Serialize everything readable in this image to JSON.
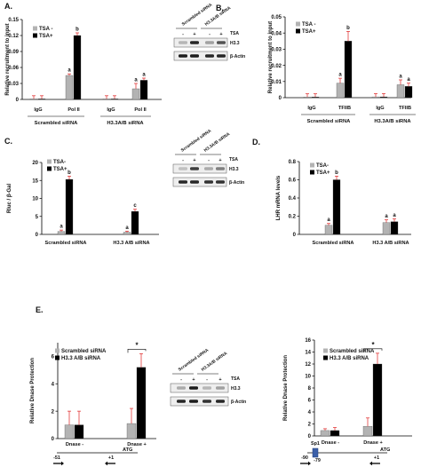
{
  "panel_labels": {
    "A": "A.",
    "B": "B.",
    "C": "C.",
    "D": "D.",
    "E": "E."
  },
  "colors": {
    "gray": "#b3b3b3",
    "black": "#000000",
    "error": "#e23b3b",
    "blot_bg": "#eeeeee",
    "sp1_box": "#3b5fa8"
  },
  "chart_data": [
    {
      "id": "A",
      "type": "bar",
      "ylabel": "Relative recruitment to input",
      "ylim": [
        0,
        0.15
      ],
      "yticks": [
        "0",
        "0.03",
        "0.06",
        "0.09",
        "0.12",
        "0.15"
      ],
      "categories": [
        "IgG",
        "Pol II",
        "IgG",
        "Pol II"
      ],
      "groups": [
        "Scrambled siRNA",
        "H3.3A/B siRNA"
      ],
      "series": [
        {
          "name": "TSA -",
          "values": [
            0.001,
            0.045,
            0.001,
            0.02
          ],
          "errors": [
            0.006,
            0.003,
            0.006,
            0.01
          ],
          "letters": [
            "",
            "a",
            "",
            "a"
          ]
        },
        {
          "name": "TSA+",
          "values": [
            0.001,
            0.12,
            0.001,
            0.036
          ],
          "errors": [
            0.006,
            0.005,
            0.006,
            0.004
          ],
          "letters": [
            "",
            "b",
            "",
            "a"
          ]
        }
      ]
    },
    {
      "id": "B",
      "type": "bar",
      "ylabel": "Relative recruitment to input",
      "ylim": [
        0,
        0.05
      ],
      "yticks": [
        "0",
        "0.01",
        "0.02",
        "0.03",
        "0.04",
        "0.05"
      ],
      "categories": [
        "IgG",
        "TFIIB",
        "IgG",
        "TFIIB"
      ],
      "groups": [
        "Scrambled siRNA",
        "H3.3A/B siRNA"
      ],
      "series": [
        {
          "name": "TSA -",
          "values": [
            0.0004,
            0.009,
            0.0005,
            0.008
          ],
          "errors": [
            0.002,
            0.003,
            0.002,
            0.003
          ],
          "letters": [
            "",
            "a",
            "",
            "a"
          ]
        },
        {
          "name": "TSA+",
          "values": [
            0.0004,
            0.035,
            0.0005,
            0.007
          ],
          "errors": [
            0.002,
            0.006,
            0.002,
            0.002
          ],
          "letters": [
            "",
            "b",
            "",
            "a"
          ]
        }
      ]
    },
    {
      "id": "C",
      "type": "bar",
      "ylabel": "Rluc / β-Gal",
      "ylim": [
        0,
        20
      ],
      "yticks": [
        "0",
        "5",
        "10",
        "15",
        "20"
      ],
      "categories": [
        "Scrambled siRNA",
        "H3.3 A/B siRNA"
      ],
      "series": [
        {
          "name": "TSA-",
          "values": [
            0.8,
            0.6
          ],
          "errors": [
            0.4,
            0.3
          ],
          "letters": [
            "a",
            "a"
          ]
        },
        {
          "name": "TSA+",
          "values": [
            15.3,
            6.4
          ],
          "errors": [
            0.9,
            0.6
          ],
          "letters": [
            "b",
            "c"
          ]
        }
      ]
    },
    {
      "id": "D",
      "type": "bar",
      "ylabel": "LHR mRNA levels",
      "ylim": [
        0,
        0.8
      ],
      "yticks": [
        "0",
        "0.2",
        "0.4",
        "0.6",
        "0.8"
      ],
      "categories": [
        "Scrambled siRNA",
        "H3.3 A/B siRNA"
      ],
      "series": [
        {
          "name": "TSA-",
          "values": [
            0.1,
            0.13
          ],
          "errors": [
            0.02,
            0.03
          ],
          "letters": [
            "a",
            "a"
          ]
        },
        {
          "name": "TSA+",
          "values": [
            0.6,
            0.14
          ],
          "errors": [
            0.04,
            0.03
          ],
          "letters": [
            "b",
            "a"
          ]
        }
      ]
    },
    {
      "id": "E1",
      "type": "bar",
      "ylabel": "Relative Dnase Protection",
      "ylim": [
        0,
        7
      ],
      "yticks": [
        "0",
        "2",
        "4",
        "6"
      ],
      "categories": [
        "Dnase -",
        "Dnase +"
      ],
      "series": [
        {
          "name": "Scrambled siRNA",
          "values": [
            1.0,
            1.1
          ],
          "errors": [
            1.0,
            1.1
          ]
        },
        {
          "name": "H3.3 A/B siRNA",
          "values": [
            1.0,
            5.2
          ],
          "errors": [
            1.0,
            1.0
          ]
        }
      ],
      "significance": "*"
    },
    {
      "id": "E2",
      "type": "bar",
      "ylabel": "Relative Dnase Protection",
      "ylim": [
        0,
        16
      ],
      "yticks": [
        "0",
        "2",
        "4",
        "6",
        "8",
        "10",
        "12",
        "14",
        "16"
      ],
      "categories": [
        "Dnase -",
        "Dnase +"
      ],
      "series": [
        {
          "name": "Scrambled siRNA",
          "values": [
            0.9,
            1.6
          ],
          "errors": [
            0.3,
            1.4
          ]
        },
        {
          "name": "H3.3 A/B siRNA",
          "values": [
            0.9,
            12.0
          ],
          "errors": [
            0.5,
            1.8
          ]
        }
      ],
      "significance": "*"
    }
  ],
  "blots": [
    {
      "id": "A",
      "lanes": [
        "Scrambled siRNA",
        "H3.3A/B siRNA"
      ],
      "treatment": "TSA",
      "signs": [
        "-",
        "+",
        "-",
        "+"
      ],
      "rows": [
        "H3.3",
        "β-Actin"
      ]
    },
    {
      "id": "C",
      "lanes": [
        "Scrambled siRNA",
        "H3.3A/B siRNA"
      ],
      "treatment": "TSA",
      "signs": [
        "-",
        "+",
        "-",
        "+"
      ],
      "rows": [
        "H3.3",
        "β-Actin"
      ]
    },
    {
      "id": "E",
      "lanes": [
        "Scrambled siRNA",
        "H3.3A/B siRNA"
      ],
      "treatment": "TSA",
      "signs": [
        "-",
        "+",
        "-",
        "+"
      ],
      "rows": [
        "H3.3",
        "β-Actin"
      ]
    }
  ],
  "schematics": [
    {
      "id": "E1",
      "left_pos": "-51",
      "right_pos": "+1",
      "atg": "ATG"
    },
    {
      "id": "E2",
      "left_pos": "-90",
      "mid_pos": "-79",
      "right_pos": "+1",
      "atg": "ATG",
      "box": "Sp1"
    }
  ]
}
